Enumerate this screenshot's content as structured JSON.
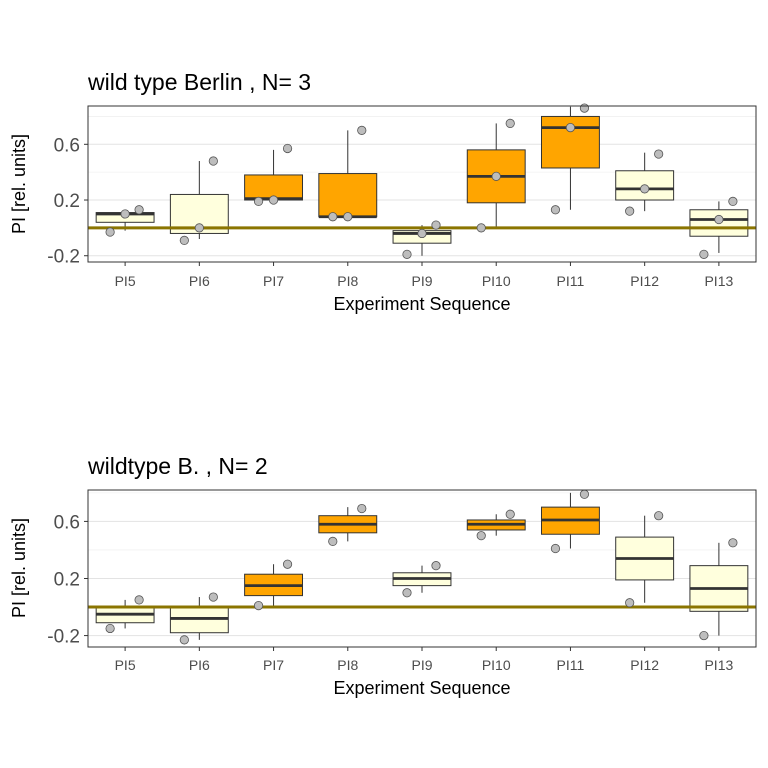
{
  "chart_data": [
    {
      "type": "box",
      "title": "wild type Berlin , N= 3",
      "xlabel": "Experiment Sequence",
      "ylabel": "PI [rel. units]",
      "ylim": [
        -0.245,
        0.875
      ],
      "yticks": [
        0.6,
        0.2,
        -0.2
      ],
      "ytick_labels": [
        "0.6",
        "0.2",
        "-0.2"
      ],
      "reference_line": 0,
      "grid": true,
      "colors": {
        "learning": "#ffa500",
        "training": "#ffffdd",
        "reference": "#8b7500",
        "point": "#bdbdbd"
      },
      "categories": [
        "PI5",
        "PI6",
        "PI7",
        "PI8",
        "PI9",
        "PI10",
        "PI11",
        "PI12",
        "PI13"
      ],
      "boxes": [
        {
          "label": "PI5",
          "fill": "training",
          "whisker_low": -0.02,
          "q1": 0.04,
          "median": 0.1,
          "q3": 0.11,
          "whisker_high": 0.13,
          "points": [
            -0.03,
            0.1,
            0.13
          ]
        },
        {
          "label": "PI6",
          "fill": "training",
          "whisker_low": -0.08,
          "q1": -0.04,
          "median": 0.0,
          "q3": 0.24,
          "whisker_high": 0.48,
          "points": [
            -0.09,
            0.0,
            0.48
          ]
        },
        {
          "label": "PI7",
          "fill": "learning",
          "whisker_low": 0.19,
          "q1": 0.2,
          "median": 0.21,
          "q3": 0.38,
          "whisker_high": 0.56,
          "points": [
            0.19,
            0.2,
            0.57
          ]
        },
        {
          "label": "PI8",
          "fill": "learning",
          "whisker_low": 0.08,
          "q1": 0.08,
          "median": 0.08,
          "q3": 0.39,
          "whisker_high": 0.7,
          "points": [
            0.08,
            0.08,
            0.7
          ]
        },
        {
          "label": "PI9",
          "fill": "training",
          "whisker_low": -0.2,
          "q1": -0.11,
          "median": -0.04,
          "q3": -0.02,
          "whisker_high": 0.02,
          "points": [
            -0.19,
            -0.04,
            0.02
          ]
        },
        {
          "label": "PI10",
          "fill": "learning",
          "whisker_low": 0.0,
          "q1": 0.18,
          "median": 0.37,
          "q3": 0.56,
          "whisker_high": 0.75,
          "points": [
            0.0,
            0.37,
            0.75
          ]
        },
        {
          "label": "PI11",
          "fill": "learning",
          "whisker_low": 0.13,
          "q1": 0.43,
          "median": 0.72,
          "q3": 0.8,
          "whisker_high": 0.87,
          "points": [
            0.13,
            0.72,
            0.86
          ]
        },
        {
          "label": "PI12",
          "fill": "training",
          "whisker_low": 0.12,
          "q1": 0.2,
          "median": 0.28,
          "q3": 0.41,
          "whisker_high": 0.54,
          "points": [
            0.12,
            0.28,
            0.53
          ]
        },
        {
          "label": "PI13",
          "fill": "training",
          "whisker_low": -0.18,
          "q1": -0.06,
          "median": 0.06,
          "q3": 0.13,
          "whisker_high": 0.19,
          "points": [
            -0.19,
            0.06,
            0.19
          ]
        }
      ]
    },
    {
      "type": "box",
      "title": "wildtype B. , N= 2",
      "xlabel": "Experiment Sequence",
      "ylabel": "PI [rel. units]",
      "ylim": [
        -0.28,
        0.82
      ],
      "yticks": [
        0.6,
        0.2,
        -0.2
      ],
      "ytick_labels": [
        "0.6",
        "0.2",
        "-0.2"
      ],
      "reference_line": 0,
      "grid": true,
      "colors": {
        "learning": "#ffa500",
        "training": "#ffffdd",
        "reference": "#8b7500",
        "point": "#bdbdbd"
      },
      "categories": [
        "PI5",
        "PI6",
        "PI7",
        "PI8",
        "PI9",
        "PI10",
        "PI11",
        "PI12",
        "PI13"
      ],
      "boxes": [
        {
          "label": "PI5",
          "fill": "training",
          "whisker_low": -0.15,
          "q1": -0.11,
          "median": -0.05,
          "q3": 0.0,
          "whisker_high": 0.05,
          "points": [
            -0.15,
            0.05
          ]
        },
        {
          "label": "PI6",
          "fill": "training",
          "whisker_low": -0.23,
          "q1": -0.18,
          "median": -0.08,
          "q3": 0.0,
          "whisker_high": 0.07,
          "points": [
            -0.23,
            0.07
          ]
        },
        {
          "label": "PI7",
          "fill": "learning",
          "whisker_low": 0.01,
          "q1": 0.08,
          "median": 0.15,
          "q3": 0.23,
          "whisker_high": 0.3,
          "points": [
            0.01,
            0.3
          ]
        },
        {
          "label": "PI8",
          "fill": "learning",
          "whisker_low": 0.46,
          "q1": 0.52,
          "median": 0.58,
          "q3": 0.64,
          "whisker_high": 0.7,
          "points": [
            0.46,
            0.69
          ]
        },
        {
          "label": "PI9",
          "fill": "training",
          "whisker_low": 0.1,
          "q1": 0.15,
          "median": 0.2,
          "q3": 0.24,
          "whisker_high": 0.29,
          "points": [
            0.1,
            0.29
          ]
        },
        {
          "label": "PI10",
          "fill": "learning",
          "whisker_low": 0.5,
          "q1": 0.54,
          "median": 0.58,
          "q3": 0.61,
          "whisker_high": 0.65,
          "points": [
            0.5,
            0.65
          ]
        },
        {
          "label": "PI11",
          "fill": "learning",
          "whisker_low": 0.41,
          "q1": 0.51,
          "median": 0.61,
          "q3": 0.7,
          "whisker_high": 0.8,
          "points": [
            0.41,
            0.79
          ]
        },
        {
          "label": "PI12",
          "fill": "training",
          "whisker_low": 0.03,
          "q1": 0.19,
          "median": 0.34,
          "q3": 0.49,
          "whisker_high": 0.64,
          "points": [
            0.03,
            0.64
          ]
        },
        {
          "label": "PI13",
          "fill": "training",
          "whisker_low": -0.2,
          "q1": -0.03,
          "median": 0.13,
          "q3": 0.29,
          "whisker_high": 0.45,
          "points": [
            -0.2,
            0.45
          ]
        }
      ]
    }
  ]
}
